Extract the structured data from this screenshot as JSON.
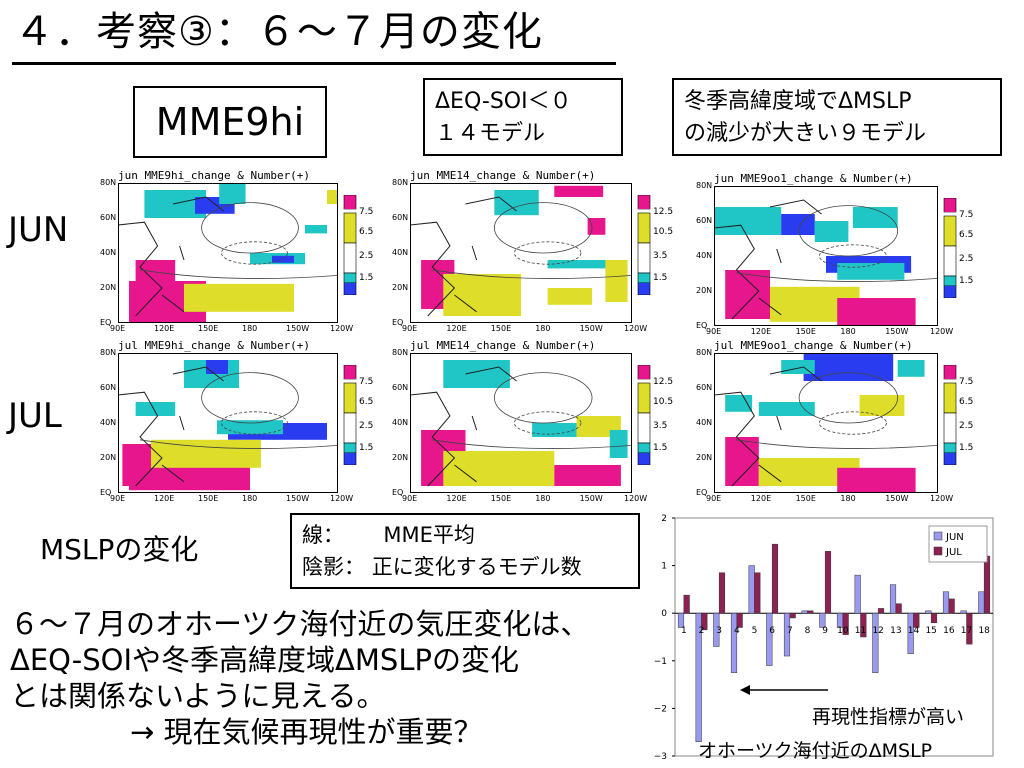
{
  "title": "４．考察③：６～７月の変化",
  "mme9hi_label": "MME9hi",
  "mme14_label": [
    "ΔEQ-SOI＜０",
    "１４モデル"
  ],
  "mme9oo1_label": [
    "冬季高緯度域でΔMSLP",
    "の減少が大きい９モデル"
  ],
  "row_labels": {
    "jun": "JUN",
    "jul": "JUL"
  },
  "map_titles": [
    "jun  MME9hi_change & Number(+)",
    "jun  MME14_change & Number(+)",
    "jun  MME9oo1_change & Number(+)",
    "jul  MME9hi_change & Number(+)",
    "jul  MME14_change & Number(+)",
    "jul  MME9oo1_change & Number(+)"
  ],
  "lat_ticks": [
    "80N",
    "60N",
    "40N",
    "20N",
    "EQ"
  ],
  "lon_ticks": [
    "90E",
    "120E",
    "150E",
    "180",
    "150W",
    "120W"
  ],
  "colorbars": {
    "nine": [
      "7.5",
      "6.5",
      "2.5",
      "1.5"
    ],
    "fourteen": [
      "12.5",
      "10.5",
      "3.5",
      "1.5"
    ]
  },
  "colors": {
    "magenta": "#e8168c",
    "yellow": "#dede2a",
    "cyan": "#20c6c6",
    "blue": "#2a3cf0",
    "purple": "#8b2252",
    "lavender": "#9999ee"
  },
  "mslp_label": "MSLPの変化",
  "legend": {
    "line_key": "線：",
    "line_val": "MME平均",
    "shade_key": "陰影：",
    "shade_val": "正に変化するモデル数"
  },
  "conclusion": [
    "６～７月のオホーツク海付近の気圧変化は、",
    "ΔEQ-SOIや冬季高緯度域ΔMSLPの変化",
    "とは関係ないように見える。",
    "→ 現在気候再現性が重要？"
  ],
  "chart_data": {
    "type": "bar",
    "categories": [
      "1",
      "2",
      "3",
      "4",
      "5",
      "6",
      "7",
      "8",
      "9",
      "10",
      "11",
      "12",
      "13",
      "14",
      "15",
      "16",
      "17",
      "18"
    ],
    "series": [
      {
        "name": "JUN",
        "color": "#9999ee",
        "values": [
          -0.3,
          -2.7,
          -0.7,
          -1.25,
          1.0,
          -1.1,
          -0.9,
          0.05,
          -0.3,
          -0.3,
          0.8,
          -1.25,
          0.6,
          -0.85,
          0.05,
          0.45,
          0.05,
          0.45
        ]
      },
      {
        "name": "JUL",
        "color": "#8b2252",
        "values": [
          0.38,
          -0.35,
          0.85,
          -0.3,
          0.85,
          1.45,
          -0.1,
          0.05,
          1.3,
          -0.45,
          -0.5,
          0.1,
          0.2,
          -0.3,
          -0.2,
          0.3,
          -0.65,
          1.2
        ]
      }
    ],
    "yticks": [
      "2",
      "1",
      "0",
      "−1",
      "−2",
      "−3"
    ],
    "ylim": [
      -3,
      2
    ],
    "legend_position": "top-right",
    "annotations": [
      "再現性指標が高い",
      "オホーツク海付近のΔMSLP"
    ]
  }
}
